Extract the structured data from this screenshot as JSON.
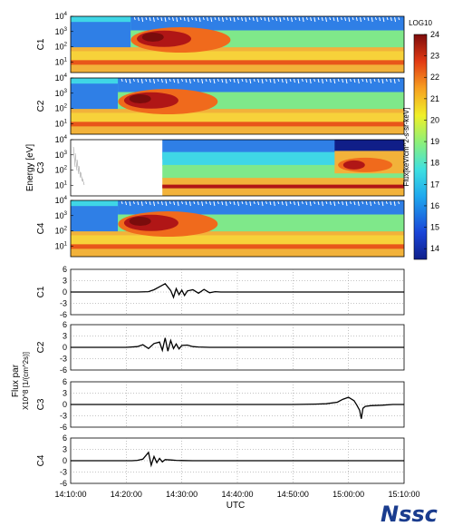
{
  "chart_data": [
    {
      "type": "heatmap",
      "title": "",
      "xlabel": "",
      "ylabel": "Energy [eV]",
      "y_scale": "log",
      "ylim_exponent": [
        0,
        4
      ],
      "y_tick_labels": [
        "10^1",
        "10^2",
        "10^3",
        "10^4"
      ],
      "series": [
        {
          "name": "C1",
          "intensity": "high-flux 1-10 keV structure from ~14:21 to ~14:31"
        },
        {
          "name": "C2",
          "intensity": "high-flux structure from ~14:20 to ~14:28"
        },
        {
          "name": "C3",
          "intensity": "data begins ~14:23, enhancement from ~14:59"
        },
        {
          "name": "C4",
          "intensity": "high-flux structure from ~14:20 to ~14:28"
        }
      ],
      "colorbar": {
        "title": "LOG10",
        "label": "Flux[keV/cm^2-s-sr-keV]",
        "min": 13.5,
        "max": 24,
        "ticks": [
          14,
          15,
          16,
          17,
          18,
          19,
          20,
          21,
          22,
          23,
          24
        ]
      }
    },
    {
      "type": "line",
      "title": "",
      "xlabel": "UTC",
      "ylabel": "Flux par",
      "ylabel2": "X10^8 [1/(cm^2s)]",
      "ylim": [
        -6,
        6
      ],
      "y_ticks": [
        -6,
        -3,
        0,
        3,
        6
      ],
      "x_tick_labels": [
        "14:10:00",
        "14:20:00",
        "14:30:00",
        "14:40:00",
        "14:50:00",
        "15:00:00",
        "15:10:00"
      ],
      "x_range_minutes": [
        0,
        60
      ],
      "grid": true,
      "series": [
        {
          "name": "C1",
          "x": [
            0,
            10,
            12,
            14,
            15,
            16,
            17,
            18,
            18.5,
            19,
            19.5,
            20,
            20.5,
            21,
            22,
            23,
            24,
            25,
            26,
            27,
            30,
            40,
            50,
            60
          ],
          "y": [
            0,
            0,
            0,
            0.1,
            0.6,
            1.4,
            2.2,
            0.4,
            -1.4,
            0.9,
            -0.7,
            0.5,
            -0.9,
            0.3,
            0.6,
            -0.3,
            0.7,
            -0.2,
            0.1,
            0,
            0,
            0,
            0,
            0
          ]
        },
        {
          "name": "C2",
          "x": [
            0,
            10,
            12,
            13,
            14,
            15,
            16,
            16.5,
            17,
            17.5,
            18,
            18.5,
            19,
            19.5,
            20,
            21,
            22,
            23,
            25,
            30,
            40,
            50,
            60
          ],
          "y": [
            0,
            0,
            0.2,
            0.7,
            -0.3,
            1.0,
            1.4,
            -0.8,
            2.5,
            -1.0,
            1.8,
            -0.3,
            0.9,
            -0.4,
            0.5,
            0.6,
            0.2,
            0.1,
            0,
            0,
            0,
            0,
            0
          ]
        },
        {
          "name": "C3",
          "x": [
            0,
            10,
            20,
            30,
            40,
            44,
            46,
            48,
            49,
            50,
            51,
            51.5,
            52,
            52.3,
            52.6,
            53,
            54,
            56,
            58,
            60
          ],
          "y": [
            0,
            0,
            0,
            0,
            0,
            0.1,
            0.2,
            0.6,
            1.4,
            1.9,
            1.0,
            -0.2,
            -1.5,
            -3.8,
            -1.0,
            -0.5,
            -0.3,
            -0.2,
            0,
            0
          ]
        },
        {
          "name": "C4",
          "x": [
            0,
            10,
            11,
            12,
            13,
            14,
            14.5,
            15,
            15.5,
            16,
            16.5,
            17,
            18,
            19,
            20,
            22,
            25,
            30,
            40,
            50,
            60
          ],
          "y": [
            0,
            0,
            0,
            0.1,
            0.4,
            2.2,
            -1.2,
            1.1,
            -0.5,
            0.6,
            -0.3,
            0.3,
            0.2,
            0.1,
            0.05,
            0,
            0,
            0,
            0,
            0,
            0
          ]
        }
      ]
    }
  ],
  "logo": {
    "text": "Nssc"
  }
}
